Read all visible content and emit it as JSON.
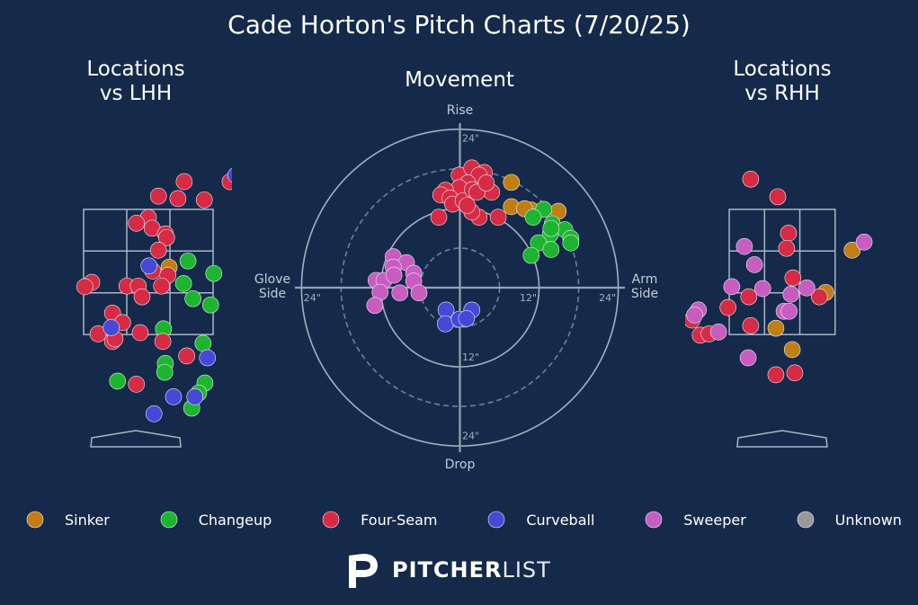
{
  "title": "Cade Horton's Pitch Charts (7/20/25)",
  "logo": {
    "bold": "PITCHER",
    "light": "LIST"
  },
  "chart_data": [
    {
      "type": "scatter",
      "title": "Locations\nvs LHH",
      "xlim": [
        -1.13,
        1.53
      ],
      "ylim": [
        -0.37,
        4.86
      ],
      "zone": {
        "x": [
          -0.83,
          1.23
        ],
        "y": [
          1.5,
          3.49
        ]
      },
      "series": [
        {
          "name": "Sinker",
          "color": "#c27e12",
          "x": [
            0.53
          ],
          "values": [
            2.57
          ]
        },
        {
          "name": "Changeup",
          "color": "#1db52f",
          "x": [
            0.83,
            1.24,
            0.76,
            0.91,
            1.19,
            0.44,
            1.07,
            0.47,
            0.46,
            -0.29,
            1.1,
            1.0,
            0.89
          ],
          "values": [
            2.67,
            2.47,
            2.31,
            2.07,
            1.97,
            1.59,
            1.36,
            1.04,
            0.9,
            0.76,
            0.73,
            0.57,
            0.33
          ]
        },
        {
          "name": "Four-Seam",
          "color": "#d62a45",
          "x": [
            0.77,
            0.36,
            0.67,
            1.09,
            0.2,
            0.01,
            0.26,
            0.47,
            0.49,
            0.36,
            0.27,
            0.51,
            -0.7,
            -0.81,
            -0.14,
            0.04,
            0.41,
            0.1,
            -0.37,
            -0.21,
            -0.6,
            -0.37,
            -0.33,
            0.07,
            0.43,
            0.81,
            0.01,
            1.5
          ],
          "values": [
            3.93,
            3.7,
            3.66,
            3.64,
            3.36,
            3.27,
            3.19,
            3.1,
            3.04,
            2.84,
            2.51,
            2.44,
            2.33,
            2.26,
            2.27,
            2.27,
            2.27,
            2.1,
            1.84,
            1.69,
            1.51,
            1.39,
            1.43,
            1.53,
            1.39,
            1.16,
            0.71,
            3.93
          ]
        },
        {
          "name": "Curveball",
          "color": "#4549d6",
          "x": [
            0.21,
            -0.39,
            1.14,
            0.6,
            0.94,
            0.29,
            1.59
          ],
          "values": [
            2.59,
            1.61,
            1.13,
            0.51,
            0.51,
            0.24,
            4.03
          ]
        },
        {
          "name": "Sweeper",
          "color": "#c85cc0",
          "x": [],
          "values": []
        },
        {
          "name": "Unknown",
          "color": "#999999",
          "x": [],
          "values": []
        }
      ]
    },
    {
      "type": "scatter",
      "title": "Movement",
      "top_label": "Rise",
      "bottom_label": "Drop",
      "left_label": "Glove\nSide",
      "right_label": "Arm\nSide",
      "xlim": [
        -25,
        25
      ],
      "ylim": [
        -25,
        25
      ],
      "xticks": [
        {
          "value": -24,
          "label": "24\""
        },
        {
          "value": 12,
          "label": "12\""
        },
        {
          "value": 24,
          "label": "24\""
        }
      ],
      "yticks": [
        {
          "value": 24,
          "label": "24\""
        },
        {
          "value": -12,
          "label": "12\""
        },
        {
          "value": -24,
          "label": "24\""
        }
      ],
      "rings": [
        6,
        12,
        18,
        24
      ],
      "series": [
        {
          "color": "#c27e12",
          "x": [
            7.8,
            7.8,
            10.8,
            14.9,
            9.8
          ],
          "values": [
            16.0,
            12.3,
            11.8,
            11.6,
            12.0
          ]
        },
        {
          "color": "#1db52f",
          "x": [
            12.7,
            11.1,
            14.0,
            15.9,
            13.7,
            16.8,
            16.8,
            11.9,
            13.8,
            10.8,
            13.8
          ],
          "values": [
            11.9,
            10.7,
            9.7,
            8.8,
            8.1,
            7.5,
            6.8,
            6.8,
            5.8,
            4.9,
            9.0
          ]
        },
        {
          "color": "#d62a45",
          "x": [
            -0.1,
            1.8,
            3.7,
            2.9,
            1.2,
            -0.1,
            -2.2,
            -2.9,
            -1.5,
            -1.1,
            0.5,
            1.9,
            3.7,
            4.8,
            2.6,
            2.9,
            5.8,
            -3.2,
            1.8,
            1.1,
            4.0
          ],
          "values": [
            17.1,
            18.2,
            17.5,
            17.1,
            15.9,
            15.2,
            14.8,
            14.1,
            13.6,
            12.7,
            13.2,
            14.9,
            15.2,
            14.5,
            14.5,
            10.7,
            10.7,
            10.7,
            11.5,
            12.5,
            15.9
          ]
        },
        {
          "color": "#4549d6",
          "x": [
            -2.1,
            1.8,
            -2.2,
            -0.1,
            1.0
          ],
          "values": [
            -3.4,
            -3.4,
            -5.5,
            -4.8,
            -4.7
          ]
        },
        {
          "color": "#c85cc0",
          "x": [
            -10.1,
            -8.1,
            -10.1,
            -7.0,
            -12.7,
            -11.5,
            -10.0,
            -7.0,
            -12.1,
            -9.1,
            -6.2,
            -12.9
          ],
          "values": [
            4.7,
            3.8,
            3.1,
            2.2,
            1.1,
            1.1,
            1.9,
            1.0,
            -0.7,
            -0.8,
            -0.8,
            -2.7
          ]
        },
        {
          "color": "#999999",
          "x": [],
          "values": []
        }
      ]
    },
    {
      "type": "scatter",
      "title": "Locations\nvs RHH",
      "xlim": [
        -1.54,
        1.57
      ],
      "ylim": [
        -0.37,
        4.86
      ],
      "zone": {
        "x": [
          -0.84,
          0.84
        ],
        "y": [
          1.5,
          3.49
        ]
      },
      "series": [
        {
          "color": "#c27e12",
          "x": [
            1.11,
            0.69,
            -0.1,
            0.16
          ],
          "values": [
            2.84,
            2.17,
            1.6,
            1.26
          ]
        },
        {
          "color": "#1db52f",
          "x": [],
          "values": []
        },
        {
          "color": "#d62a45",
          "x": [
            -0.5,
            -0.07,
            0.1,
            0.07,
            0.17,
            -0.53,
            0.59,
            -0.86,
            -0.5,
            -1.43,
            -1.3,
            -1.16,
            -0.1,
            0.2
          ],
          "values": [
            3.97,
            3.69,
            3.11,
            2.87,
            2.4,
            2.1,
            2.1,
            1.93,
            1.64,
            1.73,
            1.49,
            1.51,
            0.86,
            0.89
          ]
        },
        {
          "color": "#4549d6",
          "x": [],
          "values": []
        },
        {
          "color": "#c85cc0",
          "x": [
            -0.6,
            -0.44,
            1.3,
            -0.8,
            -0.31,
            0.14,
            0.39,
            0.03,
            0.11,
            -1.33,
            -1.39,
            -1.01,
            -0.54
          ],
          "values": [
            2.9,
            2.61,
            2.97,
            2.26,
            2.23,
            2.14,
            2.24,
            1.87,
            1.87,
            1.89,
            1.81,
            1.54,
            1.13
          ]
        },
        {
          "color": "#999999",
          "x": [],
          "values": []
        }
      ]
    }
  ]
}
